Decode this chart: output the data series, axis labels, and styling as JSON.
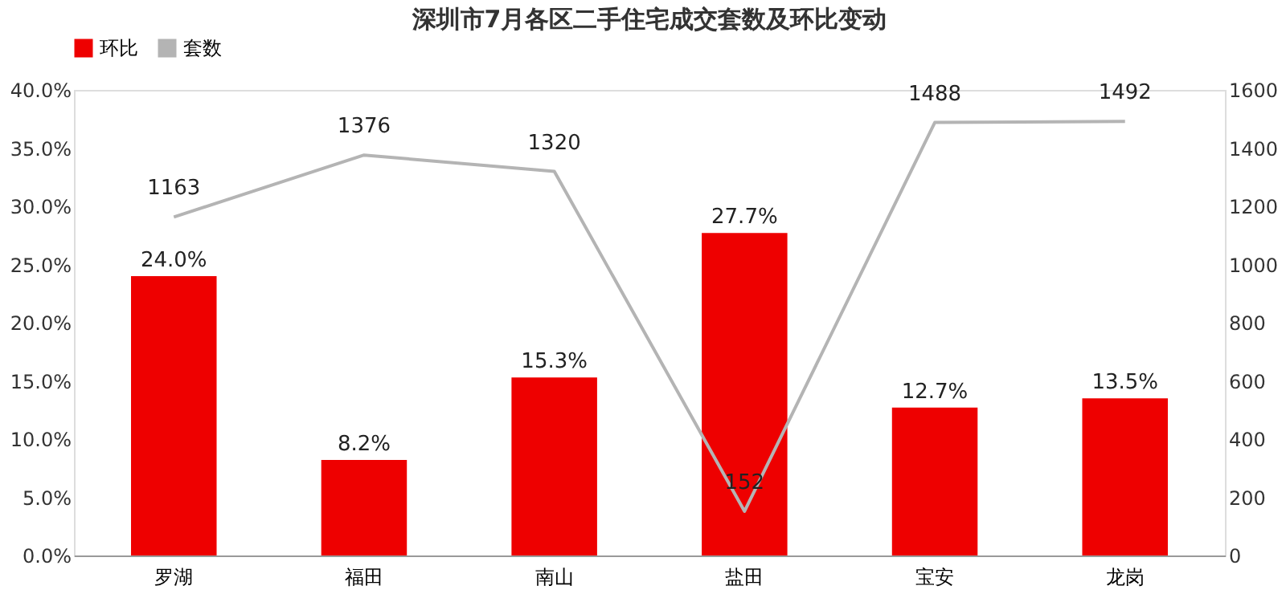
{
  "chart_data": {
    "type": "bar",
    "title": "深圳市7月各区二手住宅成交套数及环比变动",
    "categories": [
      "罗湖",
      "福田",
      "南山",
      "盐田",
      "宝安",
      "龙岗"
    ],
    "series": [
      {
        "name": "环比",
        "color": "#ee0000",
        "values": [
          24.0,
          8.2,
          15.3,
          27.7,
          12.7,
          13.5
        ],
        "value_labels": [
          "24.0%",
          "8.2%",
          "15.3%",
          "27.7%",
          "12.7%",
          "13.5%"
        ]
      },
      {
        "name": "套数",
        "type": "line",
        "axis": "y2",
        "color": "#b4b4b4",
        "values": [
          1163,
          1376,
          1320,
          152,
          1488,
          1492
        ],
        "value_labels": [
          "1163",
          "1376",
          "1320",
          "152",
          "1488",
          "1492"
        ]
      }
    ],
    "ylim": [
      0,
      40
    ],
    "yticks": [
      {
        "value": 0,
        "label": "0.0%"
      },
      {
        "value": 5,
        "label": "5.0%"
      },
      {
        "value": 10,
        "label": "10.0%"
      },
      {
        "value": 15,
        "label": "15.0%"
      },
      {
        "value": 20,
        "label": "20.0%"
      },
      {
        "value": 25,
        "label": "25.0%"
      },
      {
        "value": 30,
        "label": "30.0%"
      },
      {
        "value": 35,
        "label": "35.0%"
      },
      {
        "value": 40,
        "label": "40.0%"
      }
    ],
    "y2lim": [
      0,
      1600
    ],
    "y2ticks": [
      0,
      200,
      400,
      600,
      800,
      1000,
      1200,
      1400,
      1600
    ],
    "legend": "top",
    "grid": false,
    "marker": "none",
    "line_style": "solid"
  }
}
